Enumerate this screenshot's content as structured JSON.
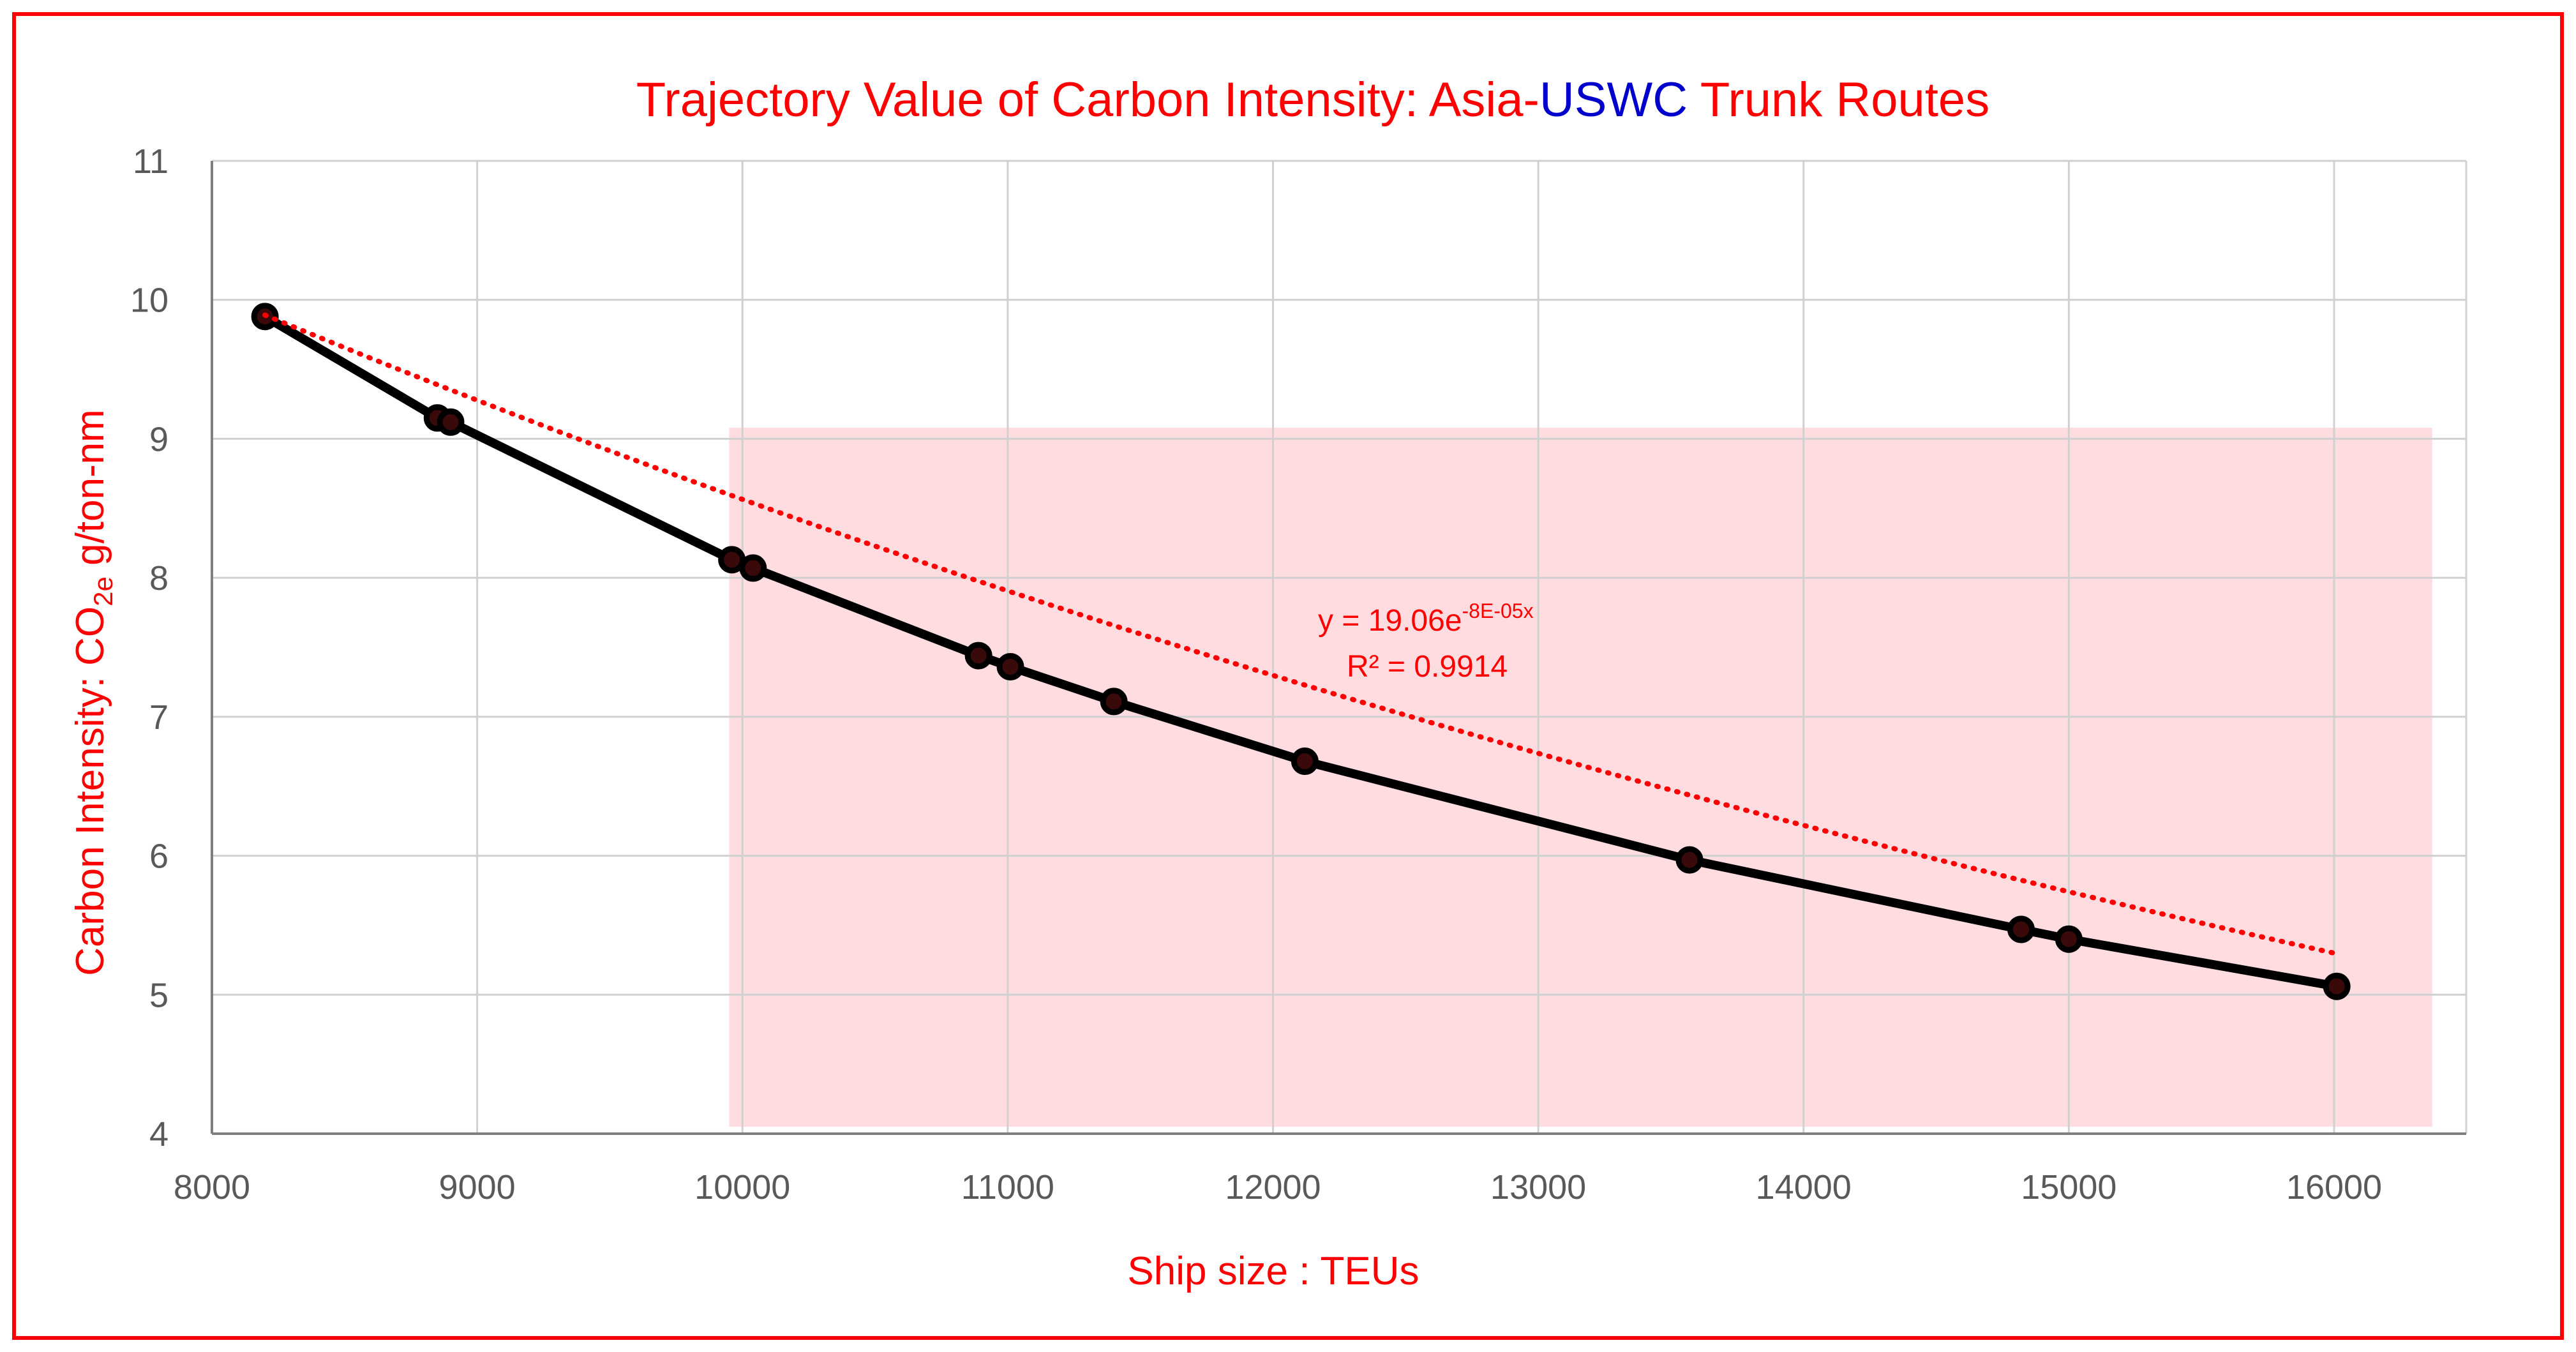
{
  "chart_data": {
    "type": "scatter",
    "title_parts": [
      {
        "text": "Trajectory Value of Carbon Intensity: Asia-",
        "color": "#ff0000"
      },
      {
        "text": "USWC",
        "color": "#0000cc"
      },
      {
        "text": " Trunk Routes",
        "color": "#ff0000"
      }
    ],
    "xlabel": "Ship size : TEUs",
    "ylabel": {
      "prefix": "Carbon Intensity: CO",
      "subscript": "2e",
      "suffix": " g/ton-nm"
    },
    "xlim": [
      8000,
      16500
    ],
    "ylim": [
      4,
      11
    ],
    "xticks": [
      8000,
      9000,
      10000,
      11000,
      12000,
      13000,
      14000,
      15000,
      16000
    ],
    "yticks": [
      4,
      5,
      6,
      7,
      8,
      9,
      10,
      11
    ],
    "grid": true,
    "series": [
      {
        "line_color": "#000000",
        "marker_color": "#3a0a0a",
        "points": [
          {
            "x": 8200,
            "y": 9.88
          },
          {
            "x": 8850,
            "y": 9.15
          },
          {
            "x": 8900,
            "y": 9.12
          },
          {
            "x": 9960,
            "y": 8.13
          },
          {
            "x": 10040,
            "y": 8.07
          },
          {
            "x": 10890,
            "y": 7.44
          },
          {
            "x": 11010,
            "y": 7.36
          },
          {
            "x": 11400,
            "y": 7.11
          },
          {
            "x": 12120,
            "y": 6.68
          },
          {
            "x": 13570,
            "y": 5.97
          },
          {
            "x": 14820,
            "y": 5.47
          },
          {
            "x": 15000,
            "y": 5.4
          },
          {
            "x": 16010,
            "y": 5.06
          }
        ]
      }
    ],
    "trendline": {
      "type": "exponential",
      "a": 19.06,
      "b": -8e-05,
      "x_range": [
        8200,
        16000
      ],
      "color": "#ff0000",
      "label_main": "y = 19.06e",
      "label_exp": "-8E-05x",
      "label_r2": "R² = 0.9914"
    },
    "highlight_region": {
      "x": [
        9950,
        16370
      ],
      "y": [
        4.05,
        9.08
      ],
      "color": "#ffd6da"
    },
    "frame_color": "#ff0000"
  }
}
